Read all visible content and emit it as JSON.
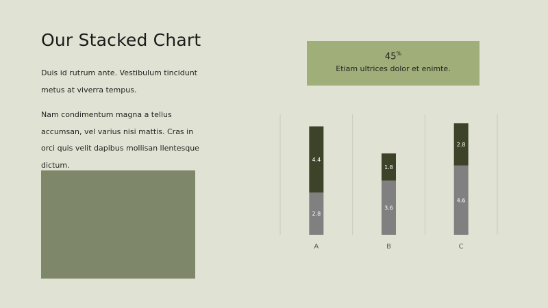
{
  "slide": {
    "title": "Our Stacked Chart",
    "paragraph1": "Duis id rutrum ante. Vestibulum tincidunt metus at viverra tempus.",
    "paragraph2": "Nam condimentum magna a tellus accumsan, vel varius nisi mattis. Cras in orci quis velit dapibus mollisan llentesque dictum."
  },
  "stat": {
    "value": "45",
    "unit": "%",
    "caption": "Etiam ultrices dolor et enimte."
  },
  "colors": {
    "background": "#e0e3d3",
    "image_placeholder": "#7f876a",
    "stat_box": "#a0af7a",
    "series_bottom": "#808080",
    "series_top": "#3c4328",
    "gridline": "#c8cbbd"
  },
  "chart_data": {
    "type": "bar",
    "stacked": true,
    "categories": [
      "A",
      "B",
      "C"
    ],
    "series": [
      {
        "values": [
          2.8,
          3.6,
          4.6
        ],
        "labels": [
          "2.8",
          "3.6",
          "4.6"
        ],
        "color": "#808080"
      },
      {
        "values": [
          4.4,
          1.8,
          2.8
        ],
        "labels": [
          "4.4",
          "1.8",
          "2.8"
        ],
        "color": "#3c4328"
      }
    ],
    "ylim": [
      0,
      8
    ],
    "grid": "vertical",
    "legend": "none"
  }
}
